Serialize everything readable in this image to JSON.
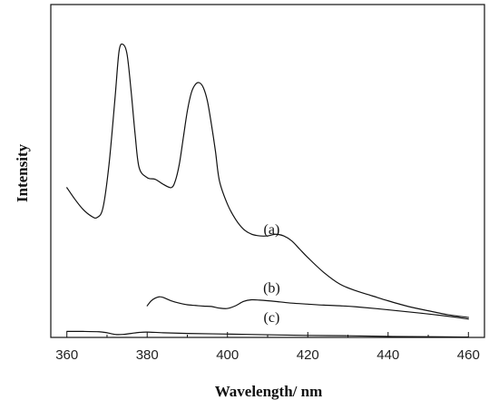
{
  "chart_data": {
    "type": "line",
    "xlabel": "Wavelength/ nm",
    "ylabel": "Intensity",
    "xlim": [
      356,
      464
    ],
    "ylim": [
      0,
      100
    ],
    "xticks": [
      360,
      380,
      400,
      420,
      440,
      460
    ],
    "yticks_shown": false,
    "grid": false,
    "legend": "none",
    "series": [
      {
        "name": "(a)",
        "label_anchor": [
          411,
          31
        ],
        "x": [
          360,
          362,
          364,
          366,
          367.5,
          369,
          370.5,
          372,
          373,
          374,
          375,
          376,
          377,
          378,
          380,
          382,
          384,
          386,
          387,
          388,
          389,
          390,
          391,
          392,
          393,
          394,
          395,
          396,
          397,
          398,
          400,
          402,
          404,
          406,
          408,
          410,
          412,
          414,
          416,
          418,
          420,
          424,
          428,
          432,
          436,
          440,
          445,
          450,
          455,
          460
        ],
        "y": [
          45,
          41.5,
          38.5,
          36.5,
          36,
          39,
          52,
          72,
          86,
          88,
          85,
          74,
          61,
          51,
          48,
          47.5,
          46,
          45,
          47,
          52,
          60,
          68,
          73.5,
          76,
          76.5,
          75,
          71,
          64,
          56,
          47,
          40,
          35.5,
          32.5,
          31,
          30.5,
          30.5,
          31,
          30.5,
          29,
          26.5,
          24,
          19.5,
          16,
          14,
          12.5,
          11,
          9.3,
          8,
          6.8,
          6
        ]
      },
      {
        "name": "(b)",
        "label_anchor": [
          411,
          13.5
        ],
        "x": [
          380,
          381,
          382,
          383,
          384,
          386,
          388,
          390,
          392,
          394,
          396,
          398,
          400,
          402,
          404,
          406,
          408,
          412,
          416,
          420,
          424,
          428,
          432,
          440,
          448,
          456,
          460
        ],
        "y": [
          9.5,
          11,
          11.8,
          12.2,
          12,
          11,
          10.3,
          9.8,
          9.6,
          9.4,
          9.3,
          8.8,
          8.7,
          9.5,
          10.8,
          11.3,
          11.2,
          10.8,
          10.3,
          10,
          9.7,
          9.5,
          9.2,
          8.3,
          7.3,
          6.2,
          5.5
        ]
      },
      {
        "name": "(c)",
        "label_anchor": [
          411,
          4.7
        ],
        "x": [
          360,
          364,
          368,
          370,
          372,
          374,
          376,
          378,
          380,
          384,
          390,
          400,
          410,
          420,
          430,
          440,
          450,
          460
        ],
        "y": [
          1.8,
          1.8,
          1.7,
          1.4,
          0.9,
          0.9,
          1.2,
          1.5,
          1.6,
          1.4,
          1.2,
          1.0,
          0.8,
          0.6,
          0.5,
          0.3,
          0.2,
          0.1
        ]
      }
    ]
  }
}
